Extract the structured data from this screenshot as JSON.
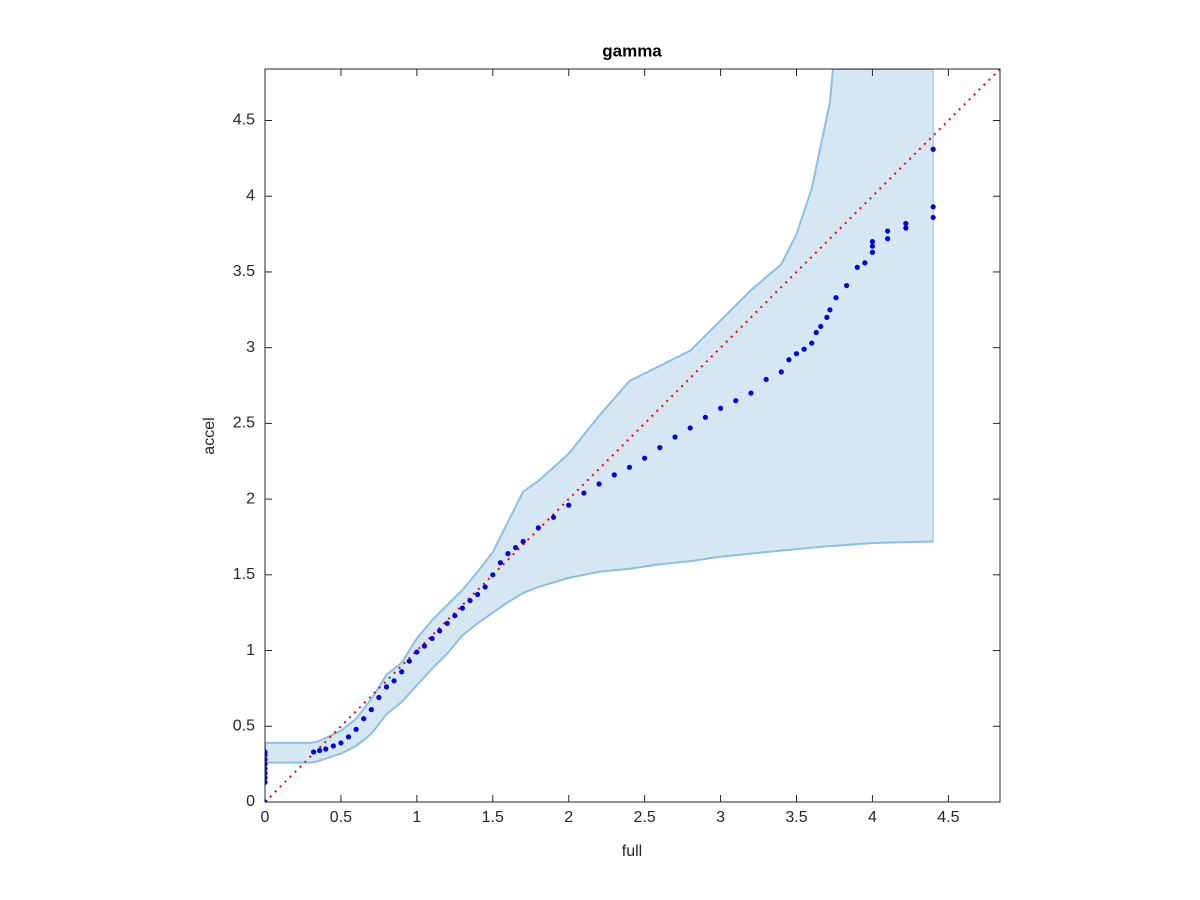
{
  "chart_data": {
    "type": "scatter",
    "title": "gamma",
    "x_label": "full",
    "y_label": "accel",
    "xlim": [
      0,
      4.84
    ],
    "ylim": [
      0,
      4.84
    ],
    "xticks": [
      0,
      0.5,
      1,
      1.5,
      2,
      2.5,
      3,
      3.5,
      4,
      4.5
    ],
    "yticks": [
      0,
      0.5,
      1,
      1.5,
      2,
      2.5,
      3,
      3.5,
      4,
      4.5
    ],
    "band": {
      "fill_color": "#d6e7f4",
      "edge_color": "#8dbfe0",
      "x": [
        0,
        0.3,
        0.35,
        0.5,
        0.6,
        0.7,
        0.8,
        0.9,
        1.0,
        1.1,
        1.2,
        1.3,
        1.4,
        1.5,
        1.6,
        1.7,
        1.8,
        2.0,
        2.2,
        2.4,
        2.6,
        2.8,
        3.0,
        3.2,
        3.4,
        3.5,
        3.6,
        3.72,
        3.74,
        4.0,
        4.4
      ],
      "upper": [
        0.39,
        0.39,
        0.4,
        0.47,
        0.55,
        0.68,
        0.84,
        0.92,
        1.08,
        1.2,
        1.3,
        1.4,
        1.52,
        1.65,
        1.85,
        2.05,
        2.12,
        2.3,
        2.55,
        2.78,
        2.88,
        2.98,
        3.18,
        3.38,
        3.55,
        3.75,
        4.05,
        4.62,
        4.84,
        4.84,
        4.84
      ],
      "lower": [
        0.26,
        0.26,
        0.27,
        0.32,
        0.37,
        0.45,
        0.58,
        0.66,
        0.77,
        0.88,
        0.98,
        1.1,
        1.18,
        1.25,
        1.32,
        1.38,
        1.42,
        1.48,
        1.52,
        1.54,
        1.57,
        1.59,
        1.62,
        1.64,
        1.66,
        1.67,
        1.68,
        1.69,
        1.69,
        1.71,
        1.72
      ]
    },
    "reference_line": {
      "color": "#ff0000",
      "x": [
        0,
        4.84
      ],
      "values": [
        0,
        4.84
      ]
    },
    "series": [
      {
        "color": "#0000e6",
        "x": [
          0,
          0,
          0,
          0,
          0,
          0,
          0,
          0,
          0,
          0.32,
          0.36,
          0.4,
          0.45,
          0.5,
          0.55,
          0.6,
          0.65,
          0.7,
          0.75,
          0.8,
          0.85,
          0.9,
          0.95,
          1.0,
          1.05,
          1.1,
          1.15,
          1.2,
          1.25,
          1.3,
          1.35,
          1.4,
          1.45,
          1.5,
          1.55,
          1.6,
          1.65,
          1.7,
          1.8,
          1.9,
          2.0,
          2.1,
          2.2,
          2.3,
          2.4,
          2.5,
          2.6,
          2.7,
          2.8,
          2.9,
          3.0,
          3.1,
          3.2,
          3.3,
          3.4,
          3.45,
          3.5,
          3.55,
          3.6,
          3.63,
          3.66,
          3.7,
          3.72,
          3.76,
          3.83,
          3.9,
          3.95,
          4.0,
          4.0,
          4.0,
          4.1,
          4.1,
          4.22,
          4.22,
          4.4,
          4.4,
          4.4
        ],
        "values": [
          0,
          0.13,
          0.16,
          0.19,
          0.22,
          0.25,
          0.28,
          0.31,
          0.33,
          0.33,
          0.34,
          0.35,
          0.37,
          0.39,
          0.43,
          0.48,
          0.55,
          0.61,
          0.69,
          0.76,
          0.8,
          0.86,
          0.93,
          0.99,
          1.03,
          1.08,
          1.13,
          1.18,
          1.23,
          1.28,
          1.33,
          1.37,
          1.42,
          1.5,
          1.58,
          1.64,
          1.68,
          1.72,
          1.81,
          1.88,
          1.96,
          2.04,
          2.1,
          2.16,
          2.21,
          2.27,
          2.34,
          2.41,
          2.47,
          2.54,
          2.6,
          2.65,
          2.7,
          2.79,
          2.84,
          2.92,
          2.96,
          2.99,
          3.03,
          3.1,
          3.14,
          3.2,
          3.25,
          3.33,
          3.41,
          3.53,
          3.56,
          3.63,
          3.67,
          3.7,
          3.72,
          3.77,
          3.79,
          3.82,
          3.86,
          3.93,
          4.31
        ]
      }
    ]
  }
}
